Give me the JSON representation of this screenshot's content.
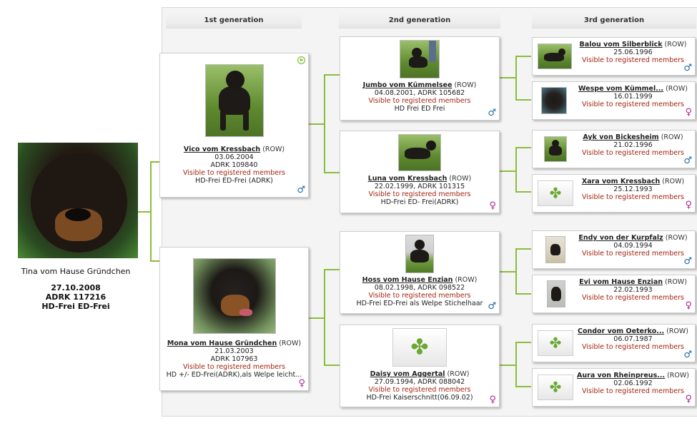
{
  "headers": {
    "gen1": "1st generation",
    "gen2": "2nd generation",
    "gen3": "3rd generation"
  },
  "colors": {
    "line": "#8bbd3b",
    "male": "#1a6aa6",
    "female": "#b0248e",
    "restricted": "#a3230f"
  },
  "symbols": {
    "male": "♂",
    "female": "♀"
  },
  "subject": {
    "name": "Tina vom Hause Gründchen",
    "date": "27.10.2008",
    "reg": "ADRK 117216",
    "health": "HD-Frei  ED-Frei"
  },
  "gen1": [
    {
      "name": "Vico vom Kressbach",
      "breed": " (ROW)",
      "date": "03.06.2004",
      "reg": "ADRK 109840",
      "restricted": "Visible to registered members",
      "health": "HD-Frei ED-Frei (ADRK)",
      "sex": "male",
      "icon": "video-play-icon"
    },
    {
      "name": "Mona vom Hause Gründchen",
      "breed": " (ROW)",
      "date": "21.03.2003",
      "reg": "ADRK 107963",
      "restricted": "Visible to registered members",
      "health": "HD +/- ED-Frei(ADRK),als Welpe leicht...",
      "sex": "female"
    }
  ],
  "gen2": [
    {
      "name": "Jumbo vom Kümmelsee",
      "breed": " (ROW)",
      "date_reg": "04.08.2001, ADRK 105682",
      "restricted": "Visible to registered members",
      "health": "HD Frei ED Frei",
      "sex": "male"
    },
    {
      "name": "Luna vom Kressbach",
      "breed": " (ROW)",
      "date_reg": "22.02.1999, ADRK 101315",
      "restricted": "Visible to registered members",
      "health": "HD-Frei ED- Frei(ADRK)",
      "sex": "female"
    },
    {
      "name": "Hoss vom Hause Enzian",
      "breed": " (ROW)",
      "date_reg": "08.02.1998, ADRK 098522",
      "restricted": "Visible to registered members",
      "health": "HD-Frei ED-Frei als Welpe Stichelhaar",
      "sex": "male"
    },
    {
      "name": "Daisy vom Aggertal",
      "breed": " (ROW)",
      "date_reg": "27.09.1994, ADRK 088042",
      "restricted": "Visible to registered members",
      "health": "HD-Frei Kaiserschnitt(06.09.02)",
      "sex": "female"
    }
  ],
  "gen3": [
    {
      "name": "Balou vom Silberblick",
      "breed": " (ROW)",
      "date": "25.06.1996",
      "restricted": "Visible to registered members",
      "sex": "male"
    },
    {
      "name": "Wespe vom Kümmel...",
      "breed": "  (ROW)",
      "date": "16.01.1999",
      "restricted": "Visible to registered members",
      "sex": "female"
    },
    {
      "name": "Ayk von Bickesheim",
      "breed": " (ROW)",
      "date": "21.02.1996",
      "restricted": "Visible to registered members",
      "sex": "male"
    },
    {
      "name": "Xara vom Kressbach",
      "breed": " (ROW)",
      "date": "25.12.1993",
      "restricted": "Visible to registered members",
      "sex": "female"
    },
    {
      "name": "Endy von der Kurpfalz",
      "breed": " (ROW)",
      "date": "04.09.1994",
      "restricted": "Visible to registered members",
      "sex": "male"
    },
    {
      "name": "Evi vom Hause Enzian",
      "breed": " (ROW)",
      "date": "22.02.1993",
      "restricted": "Visible to registered members",
      "sex": "female"
    },
    {
      "name": "Condor vom Oeterko...",
      "breed": "  (ROW)",
      "date": "06.07.1987",
      "restricted": "Visible to registered members",
      "sex": "male"
    },
    {
      "name": "Aura von Rheinpreus...",
      "breed": "  (ROW)",
      "date": "02.06.1992",
      "restricted": "Visible to registered members",
      "sex": "female"
    }
  ]
}
